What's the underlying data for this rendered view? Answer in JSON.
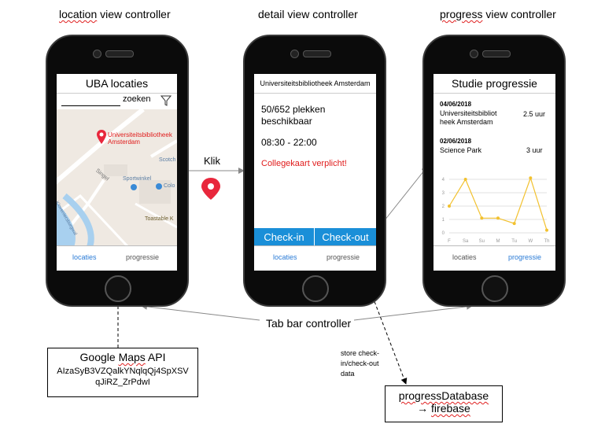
{
  "titles": {
    "left_part1": "location",
    "left_part2": " view controller",
    "middle": "detail view controller",
    "right_part1": "progress",
    "right_part2": " view controller"
  },
  "location_screen": {
    "header": "UBA locaties",
    "search_label": "zoeken",
    "map_pin_label_1": "Universiteitsbibliotheek",
    "map_pin_label_2": "Amsterdam",
    "map_labels": [
      "Scotch",
      "Sportwinkel",
      "Colo",
      "Toastable K",
      "Singel",
      "Kloveniersburgwal"
    ],
    "tab_locaties": "locaties",
    "tab_progressie": "progressie"
  },
  "detail_screen": {
    "header": "Universiteitsbibliotheek Amsterdam",
    "places_line1": "50/652 plekken",
    "places_line2": "beschikbaar",
    "hours": "08:30 - 22:00",
    "warning": "Collegekaart verplicht!",
    "checkin_label": "Check-in",
    "checkout_label": "Check-out",
    "tab_locaties": "locaties",
    "tab_progressie": "progressie"
  },
  "progress_screen": {
    "header": "Studie progressie",
    "entries": [
      {
        "date": "04/06/2018",
        "place_line1": "Universiteitsbibliot",
        "place_line2": "heek Amsterdam",
        "hours": "2.5 uur"
      },
      {
        "date": "02/06/2018",
        "place_line1": "Science Park",
        "place_line2": "",
        "hours": "3 uur"
      }
    ],
    "tab_locaties": "locaties",
    "tab_progressie": "progressie"
  },
  "chart_data": {
    "type": "line",
    "categories": [
      "F",
      "Sa",
      "Su",
      "M",
      "Tu",
      "W",
      "Th"
    ],
    "values": [
      2,
      4,
      1.1,
      1.1,
      0.7,
      4.1,
      0.2
    ],
    "ylim": [
      0,
      4
    ],
    "yticks": [
      0,
      1,
      2,
      3,
      4
    ],
    "grid": true,
    "line_color": "#f2c12e"
  },
  "annotations": {
    "klik": "Klik",
    "tab_bar_controller": "Tab bar controller",
    "store_line1": "store check-",
    "store_line2": "in/check-out",
    "store_line3": "data"
  },
  "google_box": {
    "title_part1": "Google ",
    "title_part2": "Maps",
    "title_part3": " API",
    "key_line1": "AIzaSyB3VZQalkYNqlqQj4SpXSV",
    "key_line2": "qJiRZ_ZrPdwI"
  },
  "database_box": {
    "line1": "progressDatabase",
    "line2_arrow": "→ ",
    "line2": "firebase"
  },
  "colors": {
    "accent_blue": "#1a8fd8",
    "tab_active": "#2a7bd6",
    "warning_red": "#e01b1b",
    "pin_red": "#e8273c",
    "chart_yellow": "#f2c12e"
  }
}
